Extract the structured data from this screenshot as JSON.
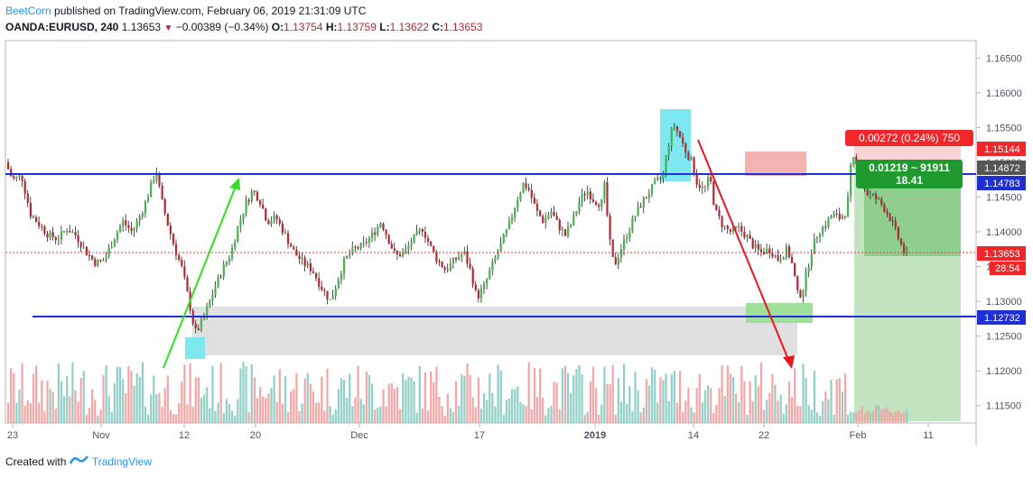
{
  "header": {
    "author": "BeetCorn",
    "published_text": "published on TradingView.com, February 06, 2019 21:31:09 UTC",
    "symbol": "OANDA:EURUSD, 240",
    "last": "1.13653",
    "change_arrow": "▼",
    "change": "−0.00389 (−0.34%)",
    "o_label": "O:",
    "o_value": "1.13754",
    "h_label": "H:",
    "h_value": "1.13759",
    "l_label": "L:",
    "l_value": "1.13622",
    "c_label": "C:",
    "c_value": "1.13653"
  },
  "price_axis": {
    "ticks": [
      "1.16500",
      "1.16000",
      "1.15500",
      "1.15000",
      "1.14500",
      "1.14000",
      "1.13500",
      "1.13000",
      "1.12500",
      "1.12000",
      "1.11500"
    ]
  },
  "time_axis": {
    "ticks": [
      "23",
      "Nov",
      "12",
      "20",
      "Dec",
      "17",
      "2019",
      "14",
      "22",
      "Feb",
      "11"
    ]
  },
  "price_labels": {
    "upper_red": "1.15144",
    "gray": "1.14872",
    "upper_blue": "1.14783",
    "current": "1.13653",
    "countdown": "28:54",
    "lower_blue": "1.12732"
  },
  "position_tool": {
    "risk_label": "0.00272 (0.24%) 750",
    "reward_line1": "0.01219 ~ 91911",
    "reward_line2": "18.41"
  },
  "footer": {
    "created_with": "Created with",
    "brand": "TradingView"
  },
  "colors": {
    "blue_line": "#1f2fd6",
    "up_candle": "#4caf50",
    "down_candle": "#b22833",
    "vol_up": "#8fcfc6",
    "vol_down": "#f2a6a6",
    "reward_zone": "#8fce8c",
    "risk_zone": "#f3a3a3",
    "highlight_cyan": "#7ee8f0",
    "arrow_green": "#33dd22",
    "arrow_red": "#e8181f"
  },
  "chart_data": {
    "type": "candlestick",
    "symbol": "OANDA:EURUSD",
    "timeframe": "240",
    "ylim": [
      1.1125,
      1.1675
    ],
    "horizontal_levels": [
      1.14783,
      1.12732
    ],
    "current_price": 1.13653,
    "path": [
      [
        0,
        1.15
      ],
      [
        8,
        1.1475
      ],
      [
        18,
        1.148
      ],
      [
        28,
        1.1425
      ],
      [
        38,
        1.141
      ],
      [
        48,
        1.1395
      ],
      [
        58,
        1.139
      ],
      [
        68,
        1.1405
      ],
      [
        78,
        1.1395
      ],
      [
        90,
        1.137
      ],
      [
        100,
        1.1355
      ],
      [
        110,
        1.136
      ],
      [
        120,
        1.139
      ],
      [
        130,
        1.1415
      ],
      [
        140,
        1.14
      ],
      [
        150,
        1.1425
      ],
      [
        160,
        1.146
      ],
      [
        167,
        1.149
      ],
      [
        172,
        1.145
      ],
      [
        180,
        1.141
      ],
      [
        188,
        1.1375
      ],
      [
        196,
        1.1345
      ],
      [
        204,
        1.1295
      ],
      [
        210,
        1.1255
      ],
      [
        216,
        1.1265
      ],
      [
        224,
        1.129
      ],
      [
        232,
        1.132
      ],
      [
        240,
        1.1345
      ],
      [
        250,
        1.137
      ],
      [
        258,
        1.141
      ],
      [
        266,
        1.144
      ],
      [
        274,
        1.146
      ],
      [
        282,
        1.1445
      ],
      [
        290,
        1.1415
      ],
      [
        300,
        1.142
      ],
      [
        310,
        1.1395
      ],
      [
        320,
        1.137
      ],
      [
        330,
        1.1355
      ],
      [
        340,
        1.1345
      ],
      [
        350,
        1.132
      ],
      [
        360,
        1.13
      ],
      [
        368,
        1.133
      ],
      [
        376,
        1.136
      ],
      [
        386,
        1.1375
      ],
      [
        396,
        1.138
      ],
      [
        406,
        1.1395
      ],
      [
        416,
        1.1415
      ],
      [
        424,
        1.139
      ],
      [
        432,
        1.1365
      ],
      [
        442,
        1.137
      ],
      [
        452,
        1.139
      ],
      [
        462,
        1.1405
      ],
      [
        470,
        1.138
      ],
      [
        478,
        1.136
      ],
      [
        488,
        1.1345
      ],
      [
        498,
        1.136
      ],
      [
        508,
        1.137
      ],
      [
        516,
        1.134
      ],
      [
        522,
        1.1305
      ],
      [
        530,
        1.132
      ],
      [
        540,
        1.1355
      ],
      [
        550,
        1.1385
      ],
      [
        558,
        1.141
      ],
      [
        566,
        1.1445
      ],
      [
        574,
        1.147
      ],
      [
        580,
        1.146
      ],
      [
        588,
        1.143
      ],
      [
        596,
        1.1415
      ],
      [
        604,
        1.143
      ],
      [
        612,
        1.141
      ],
      [
        620,
        1.1395
      ],
      [
        628,
        1.1415
      ],
      [
        636,
        1.1445
      ],
      [
        644,
        1.146
      ],
      [
        652,
        1.1445
      ],
      [
        660,
        1.144
      ],
      [
        664,
        1.147
      ],
      [
        668,
        1.1395
      ],
      [
        674,
        1.135
      ],
      [
        680,
        1.137
      ],
      [
        688,
        1.1395
      ],
      [
        696,
        1.142
      ],
      [
        704,
        1.144
      ],
      [
        712,
        1.1455
      ],
      [
        720,
        1.147
      ],
      [
        728,
        1.148
      ],
      [
        734,
        1.1525
      ],
      [
        740,
        1.1555
      ],
      [
        746,
        1.154
      ],
      [
        752,
        1.152
      ],
      [
        760,
        1.15
      ],
      [
        766,
        1.147
      ],
      [
        774,
        1.146
      ],
      [
        780,
        1.148
      ],
      [
        786,
        1.143
      ],
      [
        794,
        1.141
      ],
      [
        802,
        1.14
      ],
      [
        812,
        1.1405
      ],
      [
        820,
        1.1395
      ],
      [
        828,
        1.138
      ],
      [
        836,
        1.137
      ],
      [
        846,
        1.1375
      ],
      [
        856,
        1.136
      ],
      [
        866,
        1.1375
      ],
      [
        872,
        1.135
      ],
      [
        878,
        1.1305
      ],
      [
        884,
        1.132
      ],
      [
        892,
        1.137
      ],
      [
        900,
        1.14
      ],
      [
        908,
        1.141
      ],
      [
        916,
        1.1425
      ],
      [
        924,
        1.142
      ],
      [
        932,
        1.143
      ],
      [
        936,
        1.149
      ],
      [
        940,
        1.1505
      ],
      [
        946,
        1.148
      ],
      [
        954,
        1.1455
      ],
      [
        962,
        1.145
      ],
      [
        970,
        1.144
      ],
      [
        978,
        1.1425
      ],
      [
        986,
        1.14
      ],
      [
        994,
        1.1375
      ],
      [
        998,
        1.1365
      ]
    ]
  }
}
